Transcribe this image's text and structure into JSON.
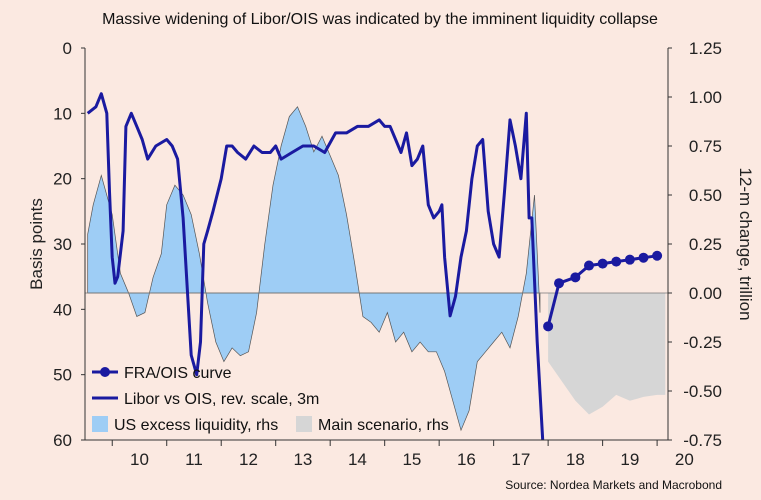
{
  "chart_data": {
    "type": "line",
    "title": "Massive widening of Libor/OIS was indicated by the imminent liquidity collapse",
    "source": "Source: Nordea Markets and Macrobond",
    "left_axis": {
      "label": "Basis points",
      "reversed": true,
      "range": [
        0,
        60
      ],
      "ticks": [
        "0",
        "10",
        "20",
        "30",
        "40",
        "50",
        "60"
      ]
    },
    "right_axis": {
      "label": "12-m change, trillion",
      "range": [
        -0.75,
        1.25
      ],
      "ticks": [
        "1.25",
        "1.00",
        "0.75",
        "0.50",
        "0.25",
        "0.00",
        "-0.25",
        "-0.50",
        "-0.75"
      ]
    },
    "x_axis": {
      "range": [
        2009.5,
        2020.2
      ],
      "ticks": [
        "10",
        "11",
        "12",
        "13",
        "14",
        "15",
        "16",
        "17",
        "18",
        "19",
        "20"
      ]
    },
    "legend": [
      {
        "name": "FRA/OIS curve",
        "style": "line-markers",
        "color": "#1a1aa0"
      },
      {
        "name": "Libor vs OIS, rev. scale, 3m",
        "style": "line",
        "color": "#1a1aa0"
      },
      {
        "name": "US excess liquidity, rhs",
        "style": "area",
        "color": "#9ecdf5"
      },
      {
        "name": "Main scenario, rhs",
        "style": "area",
        "color": "#d6d6d6"
      }
    ],
    "series": [
      {
        "name": "Libor vs OIS, rev. scale, 3m",
        "axis": "left",
        "x": [
          2009.55,
          2009.7,
          2009.8,
          2009.9,
          2009.95,
          2010.0,
          2010.05,
          2010.1,
          2010.2,
          2010.25,
          2010.35,
          2010.45,
          2010.55,
          2010.65,
          2010.8,
          2011.0,
          2011.1,
          2011.2,
          2011.3,
          2011.35,
          2011.45,
          2011.55,
          2011.62,
          2011.68,
          2011.75,
          2011.85,
          2012.0,
          2012.1,
          2012.2,
          2012.3,
          2012.45,
          2012.6,
          2012.75,
          2012.9,
          2013.0,
          2013.1,
          2013.3,
          2013.5,
          2013.7,
          2013.9,
          2014.1,
          2014.3,
          2014.5,
          2014.7,
          2014.9,
          2015.0,
          2015.1,
          2015.2,
          2015.3,
          2015.4,
          2015.5,
          2015.6,
          2015.7,
          2015.8,
          2015.9,
          2016.0,
          2016.05,
          2016.1,
          2016.2,
          2016.3,
          2016.4,
          2016.5,
          2016.6,
          2016.7,
          2016.8,
          2016.9,
          2017.0,
          2017.1,
          2017.2,
          2017.3,
          2017.4,
          2017.5,
          2017.6,
          2017.65,
          2017.7,
          2017.8,
          2017.9
        ],
        "y": [
          10,
          9,
          7,
          10,
          22,
          32,
          36,
          35,
          28,
          12,
          10,
          12,
          14,
          17,
          15,
          14,
          15,
          17,
          26,
          33,
          47,
          50,
          45,
          30,
          28,
          25,
          20,
          15,
          15,
          16,
          17,
          15,
          16,
          16,
          15,
          17,
          16,
          15,
          15,
          16,
          13,
          13,
          12,
          12,
          11,
          12,
          12,
          14,
          16,
          13,
          18,
          17,
          15,
          24,
          26,
          25,
          24,
          32,
          41,
          38,
          32,
          28,
          20,
          15,
          14,
          25,
          30,
          32,
          22,
          11,
          15,
          20,
          10,
          26,
          26,
          45,
          60
        ]
      },
      {
        "name": "FRA/OIS curve",
        "axis": "right",
        "x": [
          2018.0,
          2018.2,
          2018.5,
          2018.75,
          2019.0,
          2019.25,
          2019.5,
          2019.75,
          2020.0
        ],
        "y": [
          -0.17,
          0.05,
          0.08,
          0.14,
          0.15,
          0.16,
          0.17,
          0.18,
          0.19
        ]
      },
      {
        "name": "US excess liquidity, rhs",
        "axis": "right",
        "x": [
          2009.55,
          2009.65,
          2009.8,
          2010.0,
          2010.15,
          2010.3,
          2010.45,
          2010.6,
          2010.75,
          2010.9,
          2011.0,
          2011.15,
          2011.3,
          2011.45,
          2011.6,
          2011.75,
          2011.9,
          2012.05,
          2012.2,
          2012.35,
          2012.5,
          2012.65,
          2012.8,
          2012.95,
          2013.1,
          2013.25,
          2013.4,
          2013.55,
          2013.7,
          2013.85,
          2014.0,
          2014.15,
          2014.3,
          2014.45,
          2014.6,
          2014.75,
          2014.9,
          2015.05,
          2015.2,
          2015.35,
          2015.5,
          2015.65,
          2015.8,
          2015.95,
          2016.1,
          2016.25,
          2016.4,
          2016.55,
          2016.7,
          2016.85,
          2017.0,
          2017.15,
          2017.3,
          2017.45,
          2017.6,
          2017.75,
          2017.85
        ],
        "y": [
          0.3,
          0.45,
          0.6,
          0.4,
          0.1,
          0.0,
          -0.12,
          -0.1,
          0.08,
          0.2,
          0.45,
          0.55,
          0.5,
          0.4,
          0.2,
          -0.05,
          -0.25,
          -0.35,
          -0.28,
          -0.32,
          -0.3,
          -0.1,
          0.25,
          0.55,
          0.75,
          0.9,
          0.95,
          0.85,
          0.72,
          0.8,
          0.7,
          0.6,
          0.4,
          0.15,
          -0.12,
          -0.15,
          -0.2,
          -0.1,
          -0.25,
          -0.2,
          -0.3,
          -0.25,
          -0.3,
          -0.3,
          -0.4,
          -0.55,
          -0.7,
          -0.6,
          -0.35,
          -0.3,
          -0.25,
          -0.2,
          -0.28,
          -0.12,
          0.1,
          0.5,
          -0.1
        ]
      },
      {
        "name": "Main scenario, rhs",
        "axis": "right",
        "x": [
          2018.0,
          2018.25,
          2018.5,
          2018.75,
          2019.0,
          2019.25,
          2019.5,
          2019.75,
          2020.0,
          2020.15
        ],
        "y": [
          -0.35,
          -0.45,
          -0.55,
          -0.62,
          -0.58,
          -0.52,
          -0.55,
          -0.53,
          -0.52,
          -0.52
        ]
      }
    ]
  }
}
